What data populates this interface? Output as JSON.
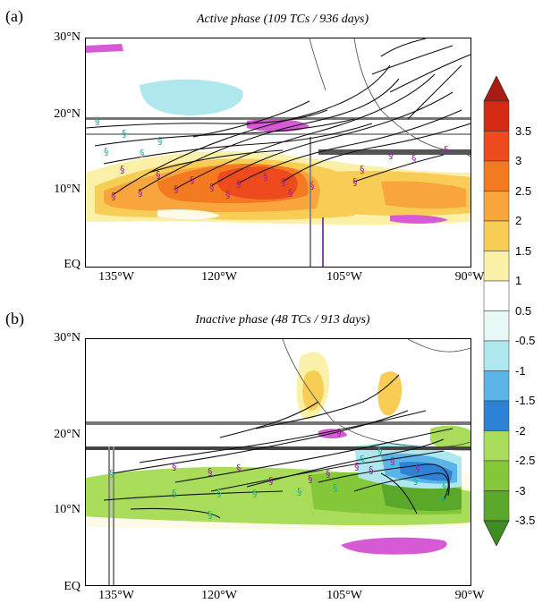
{
  "panels": [
    {
      "letter": "(a)",
      "title": "Active phase (109 TCs / 936 days)",
      "lat_labels": [
        "30°N",
        "20°N",
        "10°N",
        "EQ"
      ],
      "lon_labels": [
        "135°W",
        "120°W",
        "105°W",
        "90°W"
      ]
    },
    {
      "letter": "(b)",
      "title": "Inactive phase (48 TCs / 913 days)",
      "lat_labels": [
        "30°N",
        "20°N",
        "10°N",
        "EQ"
      ],
      "lon_labels": [
        "135°W",
        "120°W",
        "105°W",
        "90°W"
      ]
    }
  ],
  "colorbar": {
    "labels": [
      "3.5",
      "3",
      "2.5",
      "2",
      "1.5",
      "1",
      "0.5",
      "-0.5",
      "-1",
      "-1.5",
      "-2",
      "-2.5",
      "-3",
      "-3.5"
    ],
    "colors": [
      "#a81c12",
      "#d42a14",
      "#ee4a1e",
      "#f47a22",
      "#f7a53c",
      "#f8cd56",
      "#faf0a8",
      "#ffffff",
      "#e8f8f6",
      "#aee8ee",
      "#5ab4e8",
      "#2e82d6",
      "#a8dc5a",
      "#84c83a",
      "#5aa82a",
      "#3e8c22"
    ],
    "accents": {
      "magenta": "#d659d6",
      "track": "#111111",
      "genesis_a": "#a020a0",
      "genesis_b": "#20b0a0"
    }
  }
}
